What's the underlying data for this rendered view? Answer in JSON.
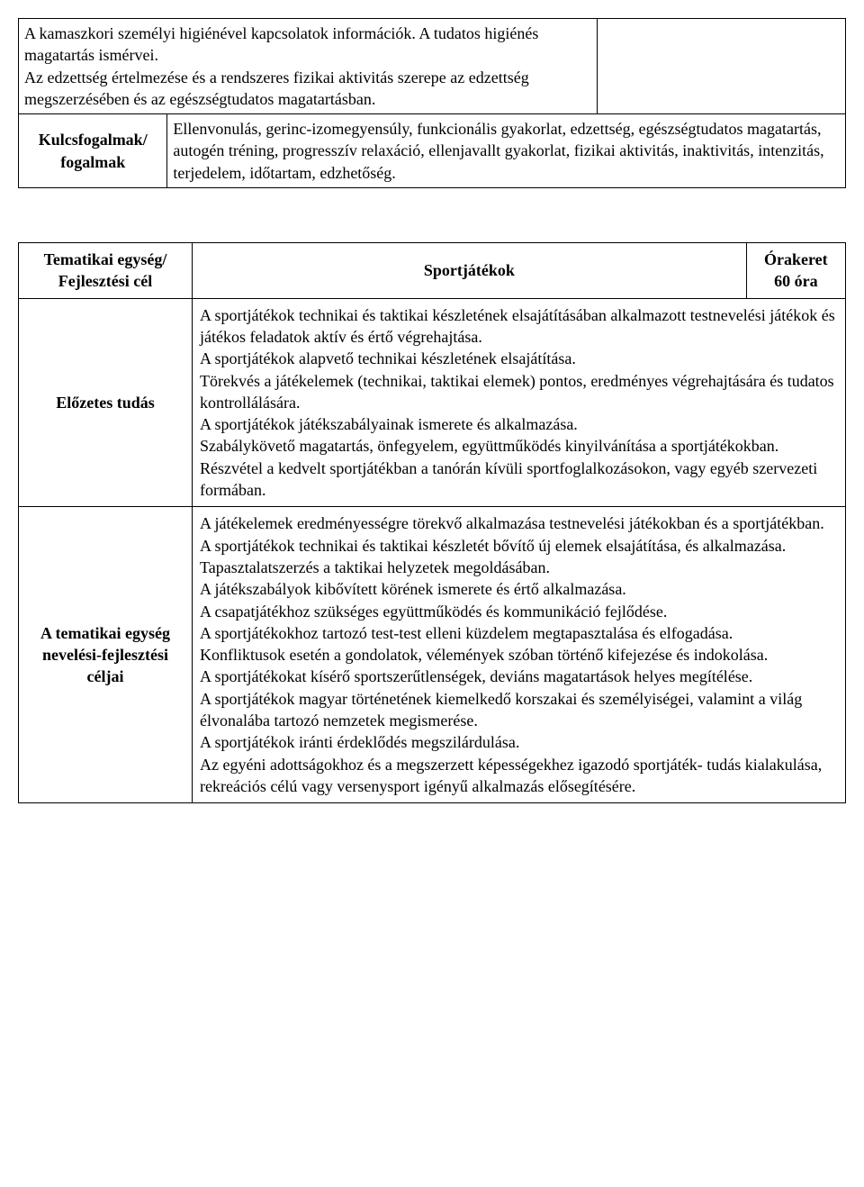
{
  "table1": {
    "row1_col1": "A kamaszkori személyi higiénével kapcsolatok információk. A tudatos higiénés magatartás ismérvei.\nAz edzettség értelmezése és a rendszeres fizikai aktivitás szerepe az edzettség megszerzésében és az egészségtudatos magatartásban.",
    "row1_col2": "",
    "row2_col1": "Kulcsfogalmak/\nfogalmak",
    "row2_col2": "Ellenvonulás, gerinc-izomegyensúly, funkcionális gyakorlat, edzettség, egészségtudatos magatartás, autogén tréning, progresszív relaxáció, ellenjavallt gyakorlat, fizikai aktivitás, inaktivitás, intenzitás, terjedelem, időtartam, edzhetőség."
  },
  "table2": {
    "header_col1": "Tematikai egység/\nFejlesztési cél",
    "header_col2": "Sportjátékok",
    "header_col3": "Órakeret\n60 óra",
    "row2_label": "Előzetes tudás",
    "row2_content": "A sportjátékok technikai és taktikai készletének elsajátításában alkalmazott testnevelési játékok és játékos feladatok aktív és értő végrehajtása.\nA sportjátékok alapvető technikai készletének elsajátítása.\nTörekvés a játékelemek (technikai, taktikai elemek) pontos, eredményes végrehajtására és tudatos kontrollálására.\nA sportjátékok játékszabályainak ismerete és alkalmazása.\nSzabálykövető magatartás, önfegyelem, együttműködés kinyilvánítása a sportjátékokban.\nRészvétel a kedvelt sportjátékban a tanórán kívüli sportfoglalkozásokon, vagy egyéb szervezeti formában.",
    "row3_label": "A tematikai egység nevelési-fejlesztési céljai",
    "row3_content": "A játékelemek eredményességre törekvő alkalmazása testnevelési játékokban és a sportjátékban.\nA sportjátékok technikai és taktikai készletét bővítő új elemek elsajátítása, és alkalmazása.\nTapasztalatszerzés a taktikai helyzetek megoldásában.\nA játékszabályok kibővített körének ismerete és értő alkalmazása.\nA csapatjátékhoz szükséges együttműködés és kommunikáció fejlődése.\nA sportjátékokhoz tartozó test-test elleni küzdelem megtapasztalása és elfogadása.\nKonfliktusok esetén a gondolatok, vélemények szóban történő kifejezése és indokolása.\nA sportjátékokat kísérő sportszerűtlenségek, deviáns magatartások helyes megítélése.\nA sportjátékok magyar történetének kiemelkedő korszakai és személyiségei, valamint a világ élvonalába tartozó nemzetek megismerése.\nA sportjátékok iránti érdeklődés megszilárdulása.\nAz egyéni adottságokhoz és a megszerzett képességekhez igazodó sportjáték- tudás kialakulása, rekreációs célú vagy versenysport igényű alkalmazás elősegítésére."
  },
  "layout": {
    "table1_col1_width": "70%",
    "table1_col2_width": "30%",
    "table1_row2_col1_width": "18%",
    "table2_col1_width": "21%",
    "table2_col3_width": "12%"
  }
}
